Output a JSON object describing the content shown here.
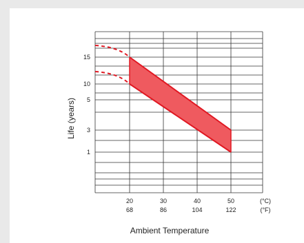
{
  "chart_data": {
    "type": "area",
    "xlabel": "Ambient Temperature",
    "ylabel": "Life (years)",
    "x_ticks": [
      {
        "c": "20",
        "f": "68"
      },
      {
        "c": "30",
        "f": "86"
      },
      {
        "c": "40",
        "f": "104"
      },
      {
        "c": "50",
        "f": "122"
      }
    ],
    "x_units": {
      "c": "(°C)",
      "f": "(°F)"
    },
    "y_ticks": [
      "15",
      "10",
      "5",
      "3",
      "1"
    ],
    "band": {
      "x_range_c": [
        20,
        50
      ],
      "upper": [
        {
          "x": 20,
          "y": 15
        },
        {
          "x": 50,
          "y": 3
        }
      ],
      "lower": [
        {
          "x": 20,
          "y": 10
        },
        {
          "x": 50,
          "y": 1
        }
      ]
    },
    "dashed_extrapolation": {
      "upper": [
        {
          "x": 10,
          "y": 17
        },
        {
          "x": 20,
          "y": 15
        }
      ],
      "lower": [
        {
          "x": 10,
          "y": 12
        },
        {
          "x": 20,
          "y": 10
        }
      ]
    },
    "colors": {
      "band_fill": "#ef5a5f",
      "band_line": "#e01822",
      "grid": "#333333"
    },
    "grid": true
  }
}
